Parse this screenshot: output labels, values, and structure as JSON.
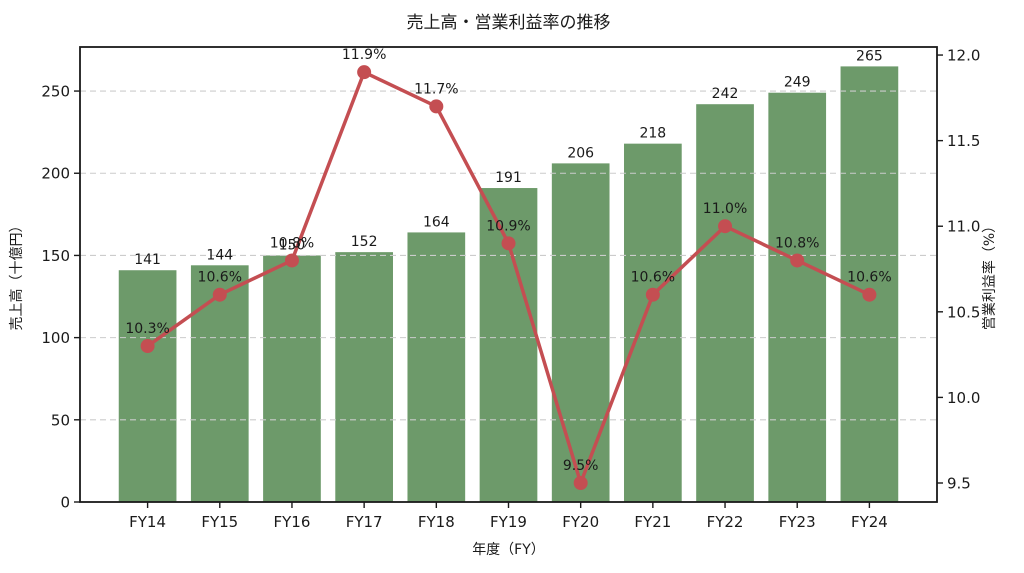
{
  "chart_data": {
    "type": "combo",
    "title": "売上高・営業利益率の推移",
    "xlabel": "年度（FY）",
    "ylabel_left": "売上高（十億円）",
    "ylabel_right": "営業利益率（%）",
    "categories": [
      "FY14",
      "FY15",
      "FY16",
      "FY17",
      "FY18",
      "FY19",
      "FY20",
      "FY21",
      "FY22",
      "FY23",
      "FY24"
    ],
    "series": [
      {
        "name": "売上高",
        "type": "bar",
        "axis": "left",
        "color": "#6d9a6a",
        "values": [
          141,
          144,
          150,
          152,
          164,
          191,
          206,
          218,
          242,
          249,
          265
        ],
        "labels": [
          "141",
          "144",
          "150",
          "152",
          "164",
          "191",
          "206",
          "218",
          "242",
          "249",
          "265"
        ]
      },
      {
        "name": "営業利益率",
        "type": "line",
        "axis": "right",
        "color": "#c44e52",
        "values": [
          10.3,
          10.6,
          10.8,
          11.9,
          11.7,
          10.9,
          9.5,
          10.6,
          11.0,
          10.8,
          10.6
        ],
        "labels": [
          "10.3%",
          "10.6%",
          "10.8%",
          "11.9%",
          "11.7%",
          "10.9%",
          "9.5%",
          "10.6%",
          "11.0%",
          "10.8%",
          "10.6%"
        ]
      }
    ],
    "left_axis": {
      "min": 0,
      "max": 276.8,
      "ticks": [
        0,
        50,
        100,
        150,
        200,
        250
      ],
      "tick_labels": [
        "0",
        "50",
        "100",
        "150",
        "200",
        "250"
      ]
    },
    "right_axis": {
      "min": 9.389,
      "max": 12.047,
      "ticks": [
        9.5,
        10.0,
        10.5,
        11.0,
        11.5,
        12.0
      ],
      "tick_labels": [
        "9.5",
        "10.0",
        "10.5",
        "11.0",
        "11.5",
        "12.0"
      ]
    },
    "grid": {
      "show": true,
      "on_ticks": "left",
      "color": "#cccccc",
      "dash": "6,4"
    },
    "spine_color": "#1a1a1a",
    "legend": "none"
  }
}
